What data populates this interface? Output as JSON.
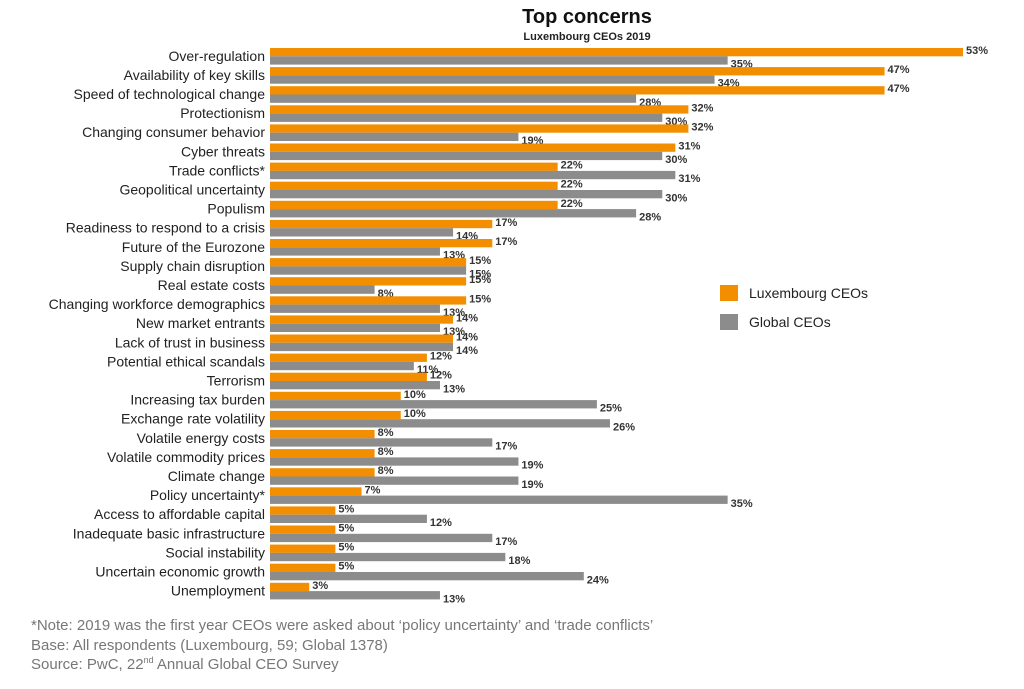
{
  "colors": {
    "luxembourg": "#F28E00",
    "global": "#8C8C8C"
  },
  "notes": {
    "note": "*Note: 2019 was the first year CEOs were asked about ‘policy uncertainty’ and ‘trade conflicts’",
    "base": "Base: All respondents (Luxembourg, 59; Global 1378)",
    "source_prefix": "Source: PwC, 22",
    "source_sup": "nd",
    "source_suffix": " Annual Global CEO Survey"
  },
  "chart_data": {
    "type": "bar",
    "orientation": "horizontal",
    "title": "Top concerns",
    "subtitle": "Luxembourg CEOs 2019",
    "legend_position": "right",
    "grid": false,
    "xlim": [
      0,
      53
    ],
    "value_suffix": "%",
    "categories": [
      "Over-regulation",
      "Availability of key skills",
      "Speed of technological change",
      "Protectionism",
      "Changing consumer behavior",
      "Cyber threats",
      "Trade conflicts*",
      "Geopolitical uncertainty",
      "Populism",
      "Readiness to respond to a crisis",
      "Future of the Eurozone",
      "Supply chain disruption",
      "Real estate costs",
      "Changing workforce demographics",
      "New market entrants",
      "Lack of trust in business",
      "Potential ethical scandals",
      "Terrorism",
      "Increasing tax burden",
      "Exchange rate volatility",
      "Volatile energy costs",
      "Volatile commodity prices",
      "Climate change",
      "Policy uncertainty*",
      "Access to affordable capital",
      "Inadequate basic infrastructure",
      "Social instability",
      "Uncertain economic growth",
      "Unemployment"
    ],
    "series": [
      {
        "name": "Luxembourg CEOs",
        "values": [
          53,
          47,
          47,
          32,
          32,
          31,
          22,
          22,
          22,
          17,
          17,
          15,
          15,
          15,
          14,
          14,
          12,
          12,
          10,
          10,
          8,
          8,
          8,
          7,
          5,
          5,
          5,
          5,
          3
        ]
      },
      {
        "name": "Global CEOs",
        "values": [
          35,
          34,
          28,
          30,
          19,
          30,
          31,
          30,
          28,
          14,
          13,
          15,
          8,
          13,
          13,
          14,
          11,
          13,
          25,
          26,
          17,
          19,
          19,
          35,
          12,
          17,
          18,
          24,
          13
        ]
      }
    ]
  }
}
